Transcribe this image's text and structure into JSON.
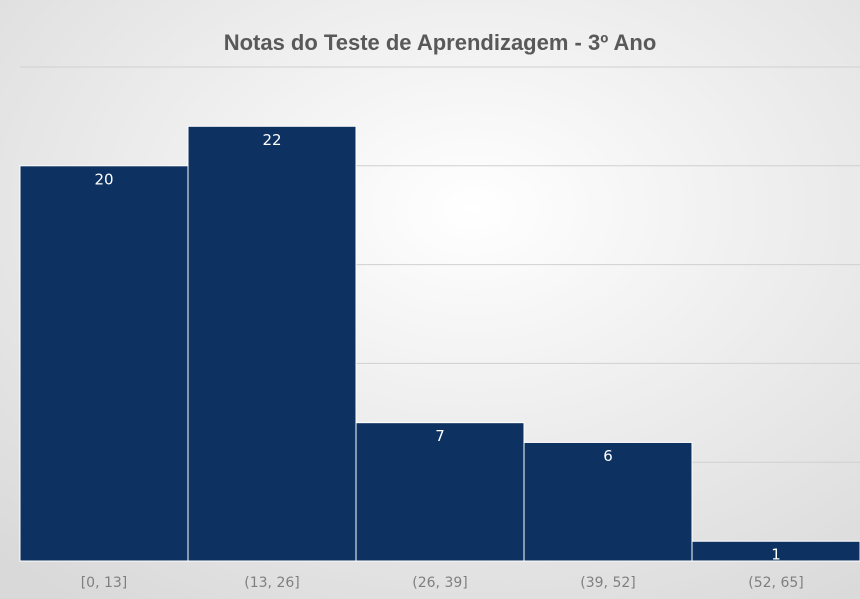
{
  "chart_data": {
    "type": "bar",
    "title": "Notas do Teste de Aprendizagem - 3º Ano",
    "categories": [
      "[0, 13]",
      "(13, 26]",
      "(26, 39]",
      "(39, 52]",
      "(52, 65]"
    ],
    "values": [
      20,
      22,
      7,
      6,
      1
    ],
    "color": "#0d3161",
    "ylim": [
      0,
      25
    ],
    "yticks": [
      0,
      5,
      10,
      15,
      20,
      25
    ],
    "grid": true
  }
}
